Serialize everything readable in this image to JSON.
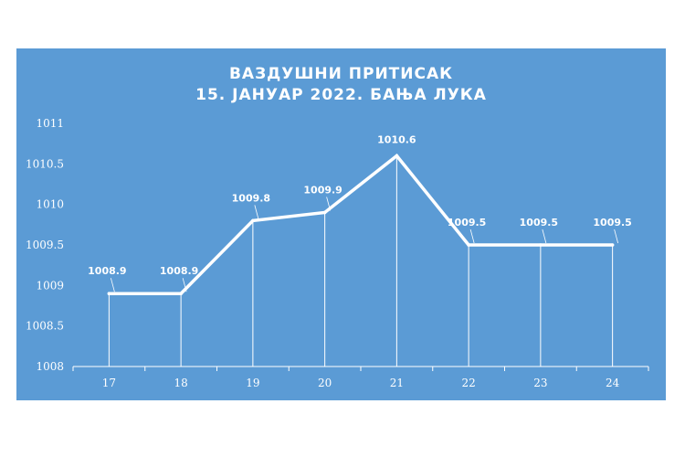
{
  "chart_data": {
    "type": "line",
    "title": "ВАЗДУШНИ ПРИТИСАК",
    "subtitle": "15. ЈАНУАР 2022.  БАЊА ЛУКА",
    "xlabel": "",
    "ylabel": "",
    "categories": [
      "17",
      "18",
      "19",
      "20",
      "21",
      "22",
      "23",
      "24"
    ],
    "values": [
      1008.9,
      1008.9,
      1009.8,
      1009.9,
      1010.6,
      1009.5,
      1009.5,
      1009.5
    ],
    "data_labels": [
      "1008.9",
      "1008.9",
      "1009.8",
      "1009.9",
      "1010.6",
      "1009.5",
      "1009.5",
      "1009.5"
    ],
    "ylim": [
      1008,
      1011
    ],
    "yticks": [
      "1008",
      "1008.5",
      "1009",
      "1009.5",
      "1010",
      "1010.5",
      "1011"
    ],
    "grid": false,
    "drop_lines": true,
    "legend": "none",
    "colors": {
      "background": "#5b9bd5",
      "line": "#ffffff",
      "text": "#ffffff"
    }
  }
}
